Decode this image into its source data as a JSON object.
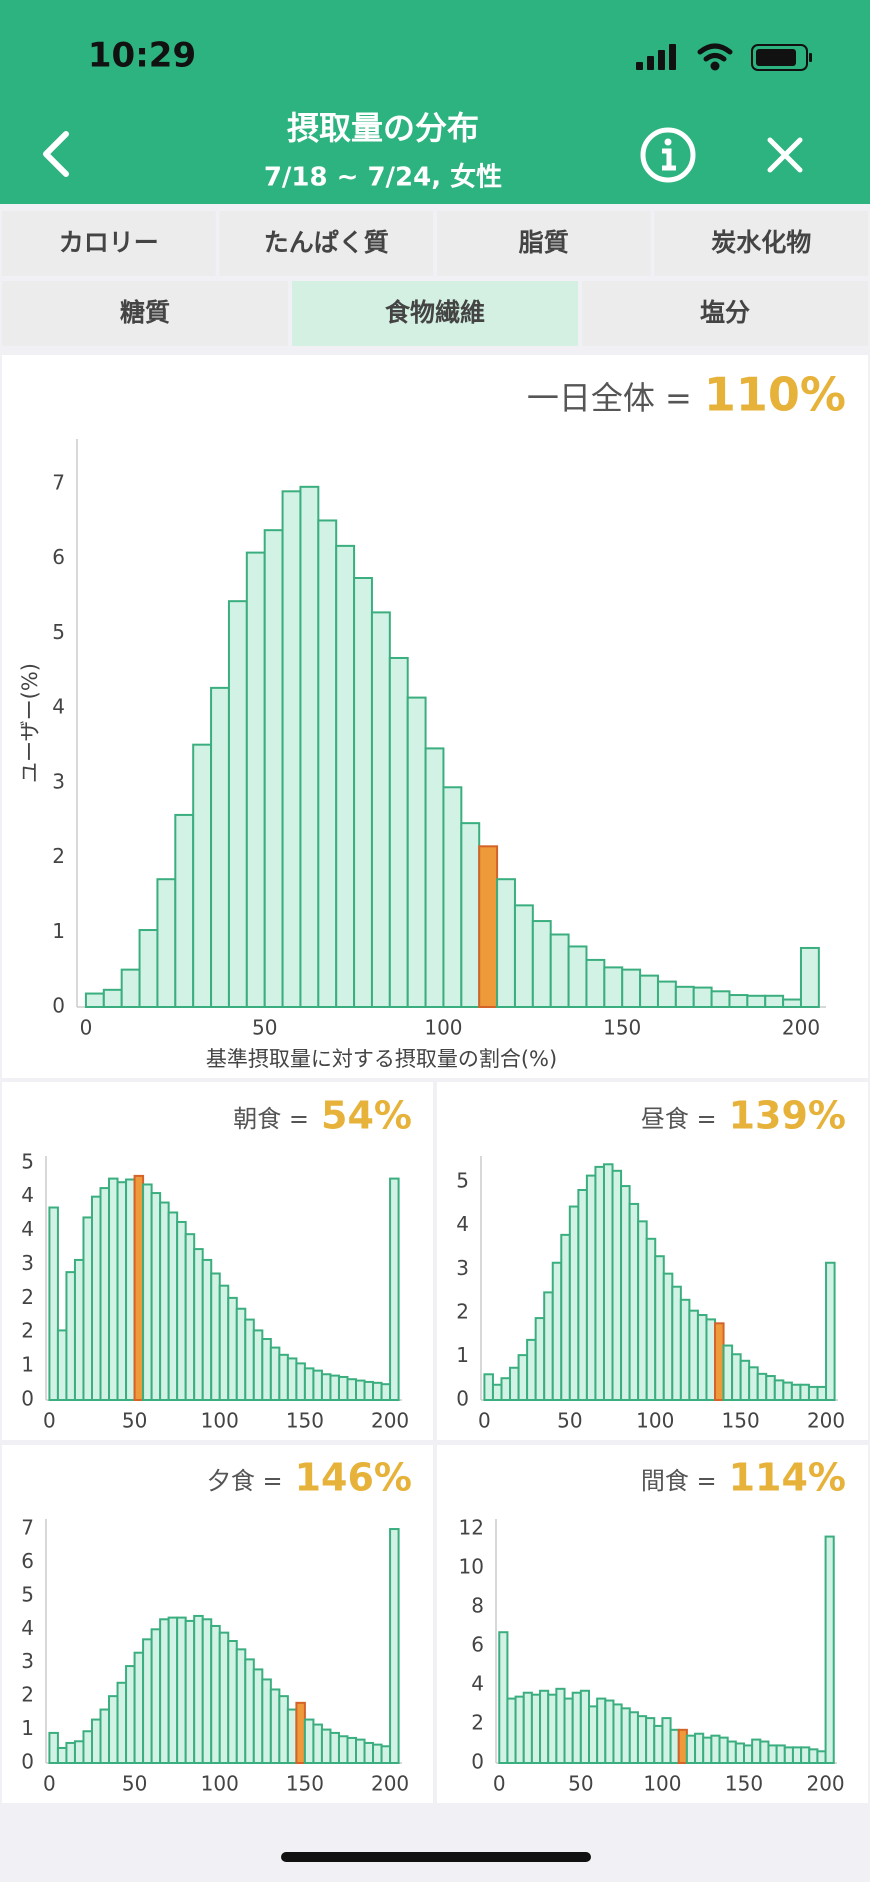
{
  "status_bar": {
    "time": "10:29"
  },
  "header": {
    "title": "摂取量の分布",
    "subtitle": "7/18 ~ 7/24, 女性"
  },
  "tabs": {
    "row1": [
      "カロリー",
      "たんぱく質",
      "脂質",
      "炭水化物"
    ],
    "row2": [
      "糖質",
      "食物繊維",
      "塩分"
    ],
    "selected": "食物繊維"
  },
  "chart_data": [
    {
      "type": "histogram",
      "title": "一日全体 =",
      "summary": {
        "value": 110,
        "label": "110%"
      },
      "x_label": "基準摂取量に対する摂取量の割合(%)",
      "y_label": "ユーザー(%)",
      "bins": [
        0,
        5,
        10,
        15,
        20,
        25,
        30,
        35,
        40,
        45,
        50,
        55,
        60,
        65,
        70,
        75,
        80,
        85,
        90,
        95,
        100,
        105,
        110,
        115,
        120,
        125,
        130,
        135,
        140,
        145,
        150,
        155,
        160,
        165,
        170,
        175,
        180,
        185,
        190,
        195,
        200,
        205
      ],
      "values": [
        0.18,
        0.23,
        0.5,
        1.03,
        1.71,
        2.57,
        3.51,
        4.27,
        5.43,
        6.08,
        6.38,
        6.9,
        6.96,
        6.51,
        6.17,
        5.74,
        5.28,
        4.67,
        4.14,
        3.46,
        2.94,
        2.46,
        2.15,
        1.71,
        1.36,
        1.15,
        0.97,
        0.81,
        0.63,
        0.53,
        0.5,
        0.42,
        0.34,
        0.27,
        0.26,
        0.21,
        0.16,
        0.15,
        0.15,
        0.1,
        0.79
      ],
      "color": "#d3f2e6",
      "edge_color": "#3aae7e",
      "highlight_color": "#ef9a3a",
      "summary_color": "#e6b23a",
      "xlim": [
        -2.5,
        207
      ],
      "ylim": [
        0,
        7.6
      ],
      "xticks": [
        0,
        50,
        100,
        150,
        200
      ],
      "yticks": [
        0,
        1,
        2,
        3,
        4,
        5,
        6,
        7
      ],
      "grid": false
    },
    {
      "type": "histogram",
      "title": "朝食 =",
      "summary": {
        "value": 54,
        "label": "54%"
      },
      "bins": [
        0,
        5,
        10,
        15,
        20,
        25,
        30,
        35,
        40,
        45,
        50,
        55,
        60,
        65,
        70,
        75,
        80,
        85,
        90,
        95,
        100,
        105,
        110,
        115,
        120,
        125,
        130,
        135,
        140,
        145,
        150,
        155,
        160,
        165,
        170,
        175,
        180,
        185,
        190,
        195,
        200,
        205
      ],
      "values": [
        4.26,
        1.54,
        2.83,
        3.1,
        4.04,
        4.5,
        4.69,
        4.9,
        4.82,
        4.88,
        4.96,
        4.77,
        4.58,
        4.37,
        4.15,
        3.94,
        3.67,
        3.34,
        3.1,
        2.8,
        2.53,
        2.26,
        2.02,
        1.78,
        1.54,
        1.35,
        1.16,
        1.0,
        0.92,
        0.81,
        0.7,
        0.65,
        0.57,
        0.54,
        0.51,
        0.46,
        0.43,
        0.4,
        0.38,
        0.35,
        4.9
      ],
      "color": "#d3f2e6",
      "edge_color": "#3aae7e",
      "highlight_color": "#ef9a3a",
      "summary_color": "#e6b23a",
      "xlim": [
        -2,
        207
      ],
      "ylim": [
        0,
        5.4
      ],
      "xticks": [
        0,
        50,
        100,
        150,
        200
      ],
      "yticks": [
        0,
        {
          "value": 0.75,
          "label": "1"
        },
        {
          "value": 1.5,
          "label": "2"
        },
        {
          "value": 2.25,
          "label": "2"
        },
        3,
        {
          "value": 3.75,
          "label": "4"
        },
        {
          "value": 4.5,
          "label": "4"
        },
        {
          "value": 5.25,
          "label": "5"
        }
      ],
      "grid": false
    },
    {
      "type": "histogram",
      "title": "昼食 =",
      "summary": {
        "value": 139,
        "label": "139%"
      },
      "bins": [
        0,
        5,
        10,
        15,
        20,
        25,
        30,
        35,
        40,
        45,
        50,
        55,
        60,
        65,
        70,
        75,
        80,
        85,
        90,
        95,
        100,
        105,
        110,
        115,
        120,
        125,
        130,
        135,
        140,
        145,
        150,
        155,
        160,
        165,
        170,
        175,
        180,
        185,
        190,
        195,
        200,
        205
      ],
      "values": [
        0.59,
        0.35,
        0.5,
        0.74,
        1.03,
        1.38,
        1.88,
        2.47,
        3.15,
        3.79,
        4.44,
        4.82,
        5.15,
        5.35,
        5.41,
        5.26,
        4.91,
        4.5,
        4.1,
        3.7,
        3.3,
        2.9,
        2.6,
        2.3,
        2.05,
        1.95,
        1.85,
        1.76,
        1.25,
        1.05,
        0.9,
        0.75,
        0.6,
        0.55,
        0.45,
        0.4,
        0.35,
        0.35,
        0.3,
        0.3,
        3.15
      ],
      "color": "#d3f2e6",
      "edge_color": "#3aae7e",
      "highlight_color": "#ef9a3a",
      "summary_color": "#e6b23a",
      "xlim": [
        -2,
        207
      ],
      "ylim": [
        0,
        5.6
      ],
      "xticks": [
        0,
        50,
        100,
        150,
        200
      ],
      "yticks": [
        0,
        1,
        2,
        3,
        4,
        5
      ],
      "grid": false
    },
    {
      "type": "histogram",
      "title": "夕食 =",
      "summary": {
        "value": 146,
        "label": "146%"
      },
      "bins": [
        0,
        5,
        10,
        15,
        20,
        25,
        30,
        35,
        40,
        45,
        50,
        55,
        60,
        65,
        70,
        75,
        80,
        85,
        90,
        95,
        100,
        105,
        110,
        115,
        120,
        125,
        130,
        135,
        140,
        145,
        150,
        155,
        160,
        165,
        170,
        175,
        180,
        185,
        190,
        195,
        200,
        205
      ],
      "values": [
        0.9,
        0.45,
        0.6,
        0.65,
        0.95,
        1.3,
        1.6,
        2.0,
        2.4,
        2.9,
        3.3,
        3.7,
        4.0,
        4.3,
        4.35,
        4.35,
        4.25,
        4.4,
        4.3,
        4.1,
        3.9,
        3.65,
        3.4,
        3.1,
        2.8,
        2.5,
        2.2,
        2.0,
        1.6,
        1.8,
        1.3,
        1.15,
        1.0,
        0.9,
        0.8,
        0.75,
        0.7,
        0.6,
        0.55,
        0.5,
        7.0
      ],
      "color": "#d3f2e6",
      "edge_color": "#3aae7e",
      "highlight_color": "#ef9a3a",
      "summary_color": "#e6b23a",
      "xlim": [
        -2,
        207
      ],
      "ylim": [
        0,
        7.3
      ],
      "xticks": [
        0,
        50,
        100,
        150,
        200
      ],
      "yticks": [
        0,
        1,
        2,
        3,
        4,
        5,
        6,
        7
      ],
      "grid": false
    },
    {
      "type": "histogram",
      "title": "間食 =",
      "summary": {
        "value": 114,
        "label": "114%"
      },
      "bins": [
        0,
        5,
        10,
        15,
        20,
        25,
        30,
        35,
        40,
        45,
        50,
        55,
        60,
        65,
        70,
        75,
        80,
        85,
        90,
        95,
        100,
        105,
        110,
        115,
        120,
        125,
        130,
        135,
        140,
        145,
        150,
        155,
        160,
        165,
        170,
        175,
        180,
        185,
        190,
        195,
        200,
        205
      ],
      "values": [
        6.7,
        3.3,
        3.4,
        3.6,
        3.5,
        3.7,
        3.5,
        3.8,
        3.3,
        3.6,
        3.7,
        2.9,
        3.3,
        3.2,
        3.0,
        2.8,
        2.6,
        2.4,
        2.3,
        1.9,
        2.3,
        1.7,
        1.7,
        1.4,
        1.5,
        1.3,
        1.4,
        1.3,
        1.1,
        1.0,
        0.9,
        1.2,
        1.1,
        0.9,
        0.9,
        0.8,
        0.8,
        0.8,
        0.7,
        0.6,
        11.6
      ],
      "color": "#d3f2e6",
      "edge_color": "#3aae7e",
      "highlight_color": "#ef9a3a",
      "summary_color": "#e6b23a",
      "xlim": [
        -2,
        207
      ],
      "ylim": [
        0,
        12.5
      ],
      "xticks": [
        0,
        50,
        100,
        150,
        200
      ],
      "yticks": [
        0,
        2,
        4,
        6,
        8,
        10,
        12
      ],
      "grid": false
    }
  ]
}
